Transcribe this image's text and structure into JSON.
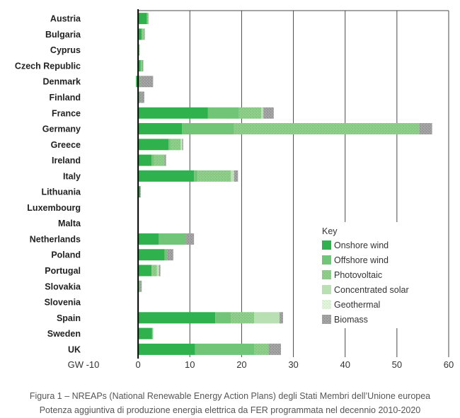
{
  "chart_data": {
    "type": "bar",
    "orientation": "horizontal",
    "stacked": true,
    "categories": [
      "Austria",
      "Bulgaria",
      "Cyprus",
      "Czech Republic",
      "Denmark",
      "Finland",
      "France",
      "Germany",
      "Greece",
      "Ireland",
      "Italy",
      "Lithuania",
      "Luxembourg",
      "Malta",
      "Netherlands",
      "Poland",
      "Portugal",
      "Slovakia",
      "Slovenia",
      "Spain",
      "Sweden",
      "UK"
    ],
    "series": [
      {
        "name": "Onshore wind",
        "color": "#2fb24d",
        "values": [
          1.7,
          0.7,
          0.1,
          0.5,
          -0.4,
          0.2,
          13.5,
          8.5,
          5.9,
          2.6,
          10.8,
          0.4,
          0.1,
          0.0,
          4.0,
          5.1,
          2.6,
          0.2,
          0.1,
          14.9,
          2.7,
          11.0
        ]
      },
      {
        "name": "Offshore wind",
        "color": "#70c576",
        "values": [
          0.0,
          0.0,
          0.0,
          0.0,
          0.4,
          0.0,
          6.0,
          10.0,
          0.3,
          0.5,
          0.7,
          0.0,
          0.0,
          0.0,
          5.2,
          0.5,
          0.0,
          0.0,
          0.0,
          3.0,
          0.0,
          11.5
        ]
      },
      {
        "name": "Photovoltaic",
        "color": "#92d08f",
        "values": [
          0.2,
          0.5,
          0.2,
          0.3,
          0.0,
          0.0,
          4.3,
          35.8,
          2.0,
          2.0,
          6.4,
          0.0,
          0.0,
          0.1,
          0.0,
          0.0,
          1.0,
          0.2,
          0.0,
          4.5,
          0.1,
          2.7
        ]
      },
      {
        "name": "Concentrated solar",
        "color": "#b8e0b2",
        "values": [
          0.0,
          0.0,
          0.0,
          0.0,
          0.0,
          0.0,
          0.4,
          0.0,
          0.2,
          0.0,
          0.5,
          0.0,
          0.0,
          0.0,
          0.0,
          0.0,
          0.3,
          0.0,
          0.0,
          4.9,
          0.0,
          0.0
        ]
      },
      {
        "name": "Geothermal",
        "color": "#d8f0d2",
        "values": [
          0.0,
          0.0,
          0.0,
          0.0,
          0.0,
          0.0,
          0.0,
          0.0,
          0.1,
          0.0,
          0.1,
          0.0,
          0.0,
          0.0,
          0.0,
          0.0,
          0.1,
          0.0,
          0.0,
          0.0,
          0.0,
          0.0
        ]
      },
      {
        "name": "Biomass",
        "color": "#a6a6a6",
        "values": [
          0.1,
          0.1,
          0.0,
          0.2,
          2.5,
          1.0,
          2.0,
          2.5,
          0.2,
          0.3,
          0.8,
          0.1,
          0.0,
          0.0,
          1.6,
          1.2,
          0.3,
          0.3,
          0.0,
          0.7,
          0.1,
          2.4
        ]
      }
    ],
    "x_axis": {
      "range": [
        -10,
        60
      ],
      "ticks": [
        -10,
        0,
        10,
        20,
        30,
        40,
        50,
        60
      ],
      "unit_label": "GW",
      "first_tick_label": "GW -10"
    },
    "legend": {
      "title": "Key",
      "placement": "lower-right"
    },
    "grid": "vertical"
  },
  "caption": {
    "line1": "Figura 1 – NREAPs (National Renewable Energy Action Plans) degli Stati Membri dell’Unione europea",
    "line2": "Potenza aggiuntiva di produzione energia elettrica da FER programmata nel decennio 2010-2020"
  }
}
